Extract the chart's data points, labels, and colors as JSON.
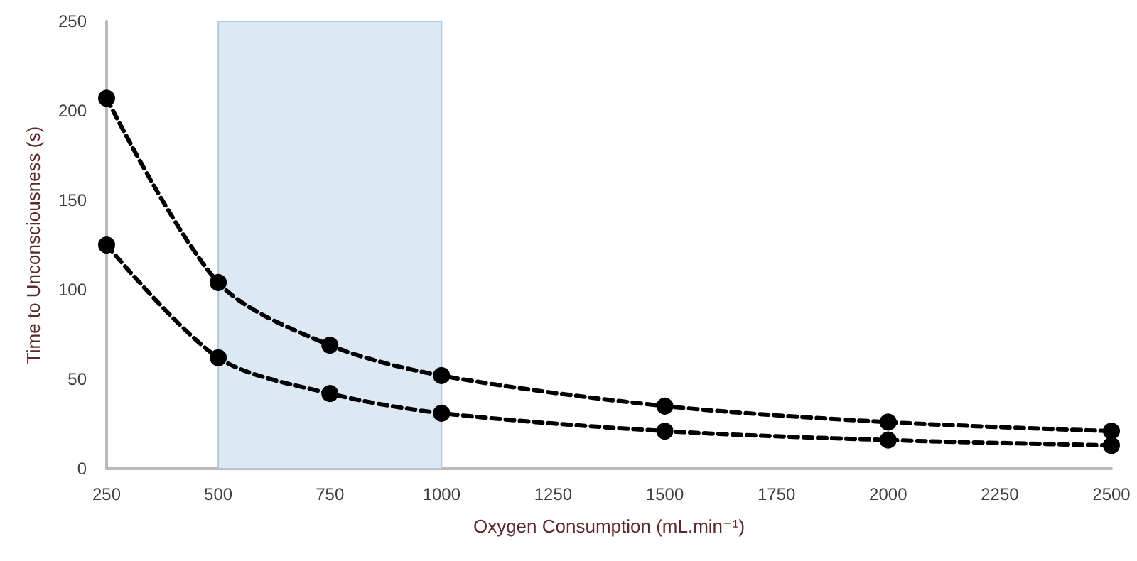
{
  "chart_data": {
    "type": "line",
    "xlabel": "Oxygen Consumption (mL.min⁻¹)",
    "ylabel": "Time to Unconsciousness (s)",
    "x": [
      250,
      500,
      750,
      1000,
      1500,
      2000,
      2500
    ],
    "series": [
      {
        "color": "#000000",
        "values": [
          207,
          104,
          69,
          52,
          35,
          26,
          21
        ]
      },
      {
        "color": "#000000",
        "values": [
          125,
          62,
          42,
          31,
          21,
          16,
          13
        ]
      }
    ],
    "xlim": [
      250,
      2500
    ],
    "xticks": [
      250,
      500,
      750,
      1000,
      1250,
      1500,
      1750,
      2000,
      2250,
      2500
    ],
    "ylim": [
      0,
      250
    ],
    "yticks": [
      0,
      50,
      100,
      150,
      200,
      250
    ],
    "bands": [
      {
        "axis": "x",
        "from": 500,
        "to": 1000,
        "color": "#dce8f4"
      }
    ],
    "grid": false,
    "marker": "circle",
    "line_style": "dashed"
  }
}
